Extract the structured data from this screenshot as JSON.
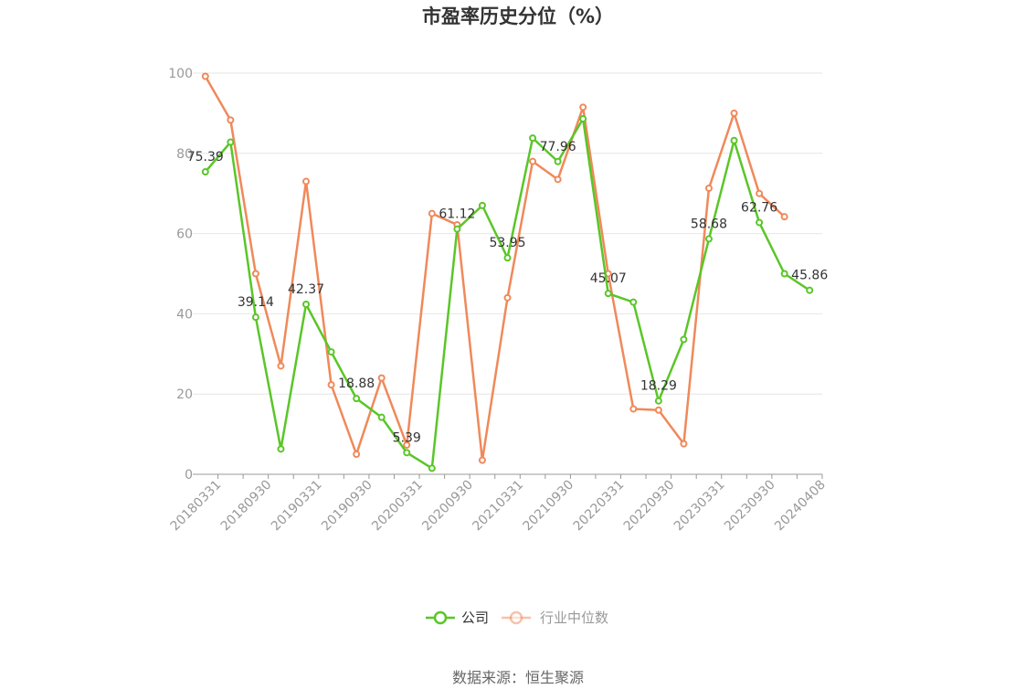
{
  "chart_data": {
    "type": "line",
    "title": "市盈率历史分位（%）",
    "source": "数据来源：恒生聚源",
    "ylim": [
      0,
      100
    ],
    "yticks": [
      0,
      20,
      40,
      60,
      80,
      100
    ],
    "x_tick_labels": [
      "20180331",
      "20180930",
      "20190331",
      "20190930",
      "20200331",
      "20200930",
      "20210331",
      "20210930",
      "20220331",
      "20220930",
      "20230331",
      "20230930",
      "20240408"
    ],
    "legend_position": "bottom-center",
    "grid": true,
    "series": [
      {
        "name": "公司",
        "color": "#5ac628",
        "values": [
          75.39,
          82.8,
          39.14,
          6.3,
          42.37,
          30.5,
          18.88,
          14.2,
          5.39,
          1.5,
          61.12,
          67.0,
          53.95,
          83.8,
          77.96,
          88.6,
          45.07,
          42.9,
          18.29,
          33.6,
          58.68,
          83.2,
          62.76,
          50.0,
          45.86
        ],
        "labels": [
          "75.39",
          "",
          "39.14",
          "",
          "42.37",
          "",
          "18.88",
          "",
          "5.39",
          "",
          "61.12",
          "",
          "53.95",
          "",
          "77.96",
          "",
          "45.07",
          "",
          "18.29",
          "",
          "58.68",
          "",
          "62.76",
          "",
          "45.86"
        ]
      },
      {
        "name": "行业中位数",
        "color": "#f0895a",
        "values": [
          99.2,
          88.3,
          50.0,
          27.0,
          73.0,
          22.3,
          5.0,
          24.0,
          7.3,
          65.0,
          62.2,
          3.5,
          44.0,
          78.0,
          73.5,
          91.5,
          50.0,
          16.3,
          16.0,
          7.6,
          71.3,
          90.0,
          70.0,
          64.2
        ]
      }
    ]
  }
}
